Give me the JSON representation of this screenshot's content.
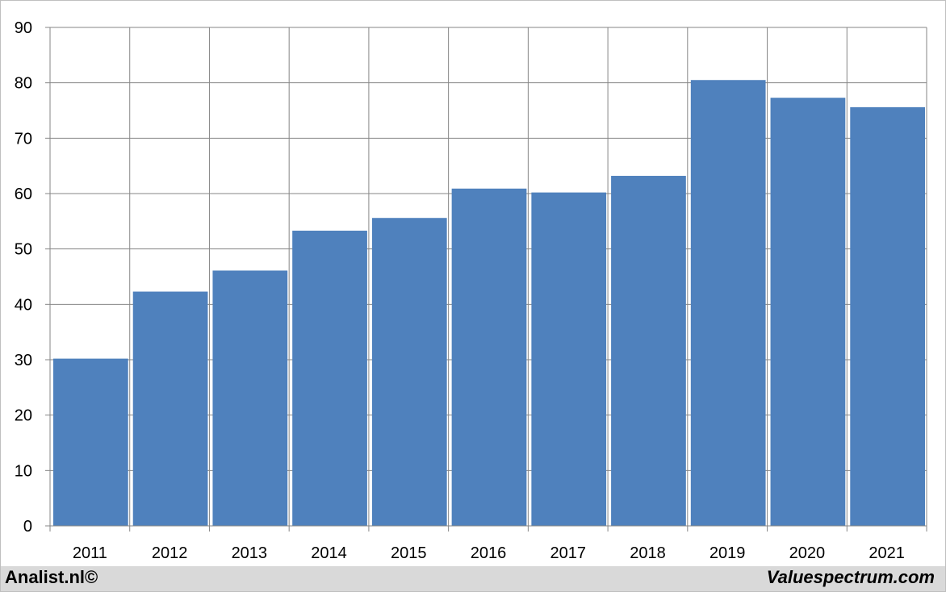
{
  "chart_data": {
    "type": "bar",
    "title": "",
    "xlabel": "",
    "ylabel": "",
    "categories": [
      "2011",
      "2012",
      "2013",
      "2014",
      "2015",
      "2016",
      "2017",
      "2018",
      "2019",
      "2020",
      "2021"
    ],
    "values": [
      30.2,
      42.3,
      46.1,
      53.3,
      55.6,
      60.9,
      60.2,
      63.2,
      80.5,
      77.3,
      75.6
    ],
    "ylim": [
      0,
      90
    ],
    "yticks": [
      0,
      10,
      20,
      30,
      40,
      50,
      60,
      70,
      80,
      90
    ],
    "grid": true,
    "bar_color": "#4f81bd",
    "grid_color": "#868686"
  },
  "footer": {
    "left_credit": "Analist.nl©",
    "right_credit": "Valuespectrum.com"
  }
}
